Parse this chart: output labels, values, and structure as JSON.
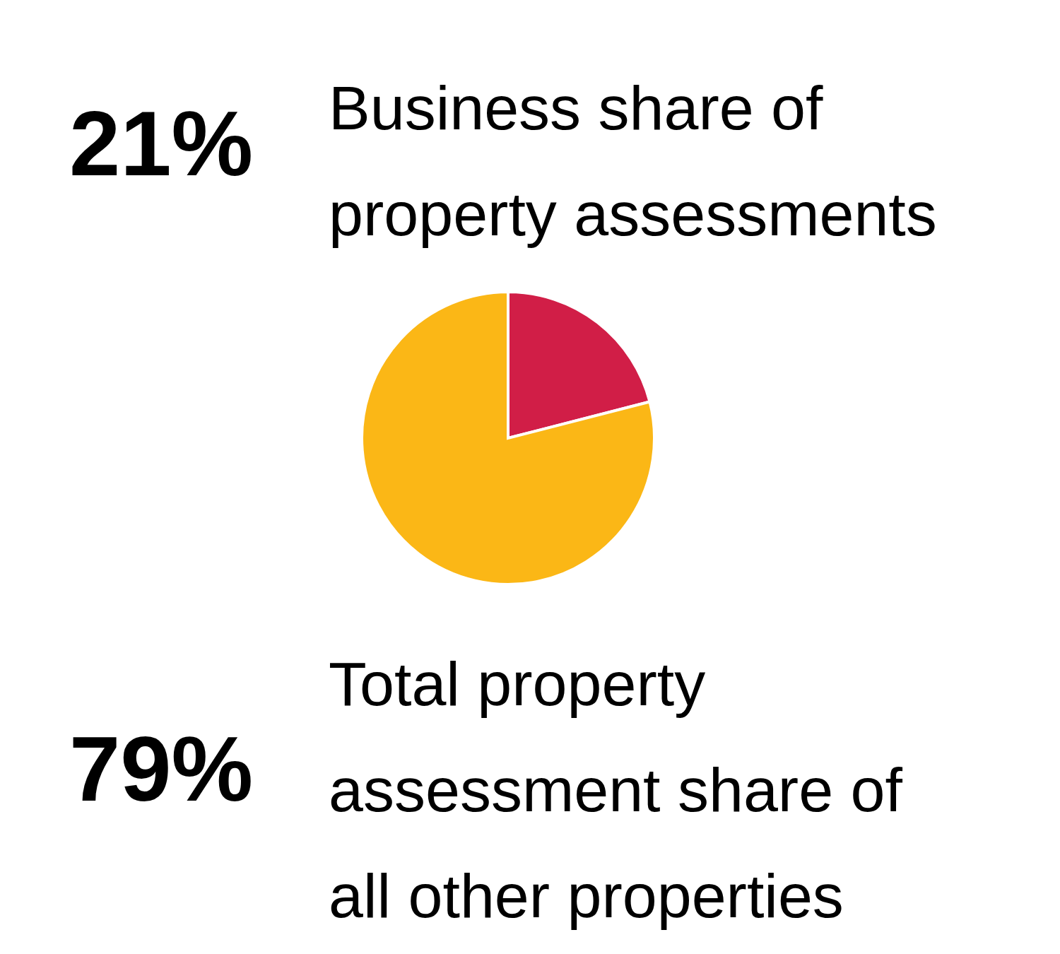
{
  "chart_data": {
    "type": "pie",
    "categories": [
      "Business share of property assessments",
      "Total property assessment share of all other properties"
    ],
    "values": [
      21,
      79
    ],
    "colors": [
      "#d11e47",
      "#fbb716"
    ],
    "value_labels": [
      "21%",
      "79%"
    ]
  }
}
